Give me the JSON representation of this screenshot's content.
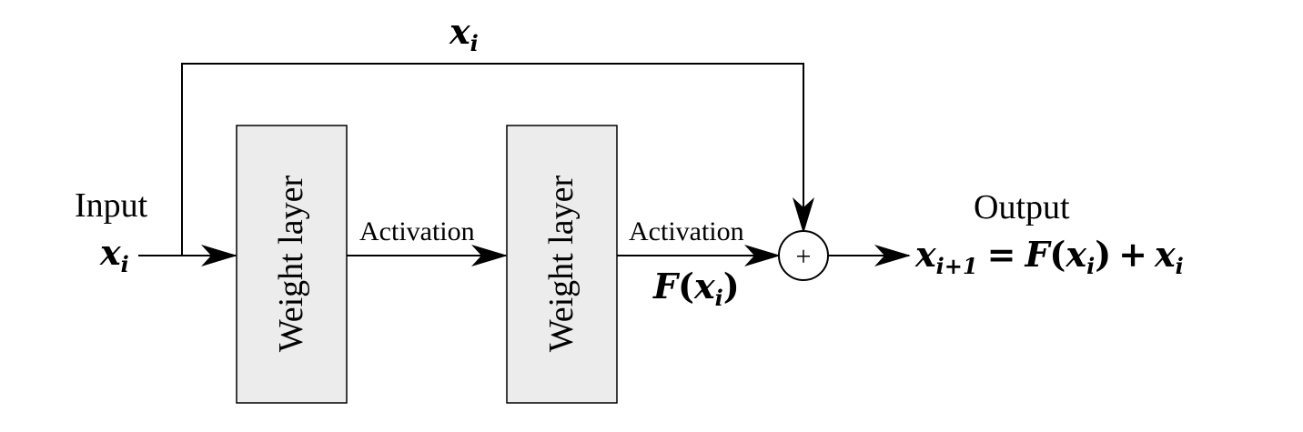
{
  "input": {
    "title": "Input",
    "var": "x",
    "sub": "i"
  },
  "skip": {
    "var": "x",
    "sub": "i"
  },
  "blocks": [
    {
      "label": "Weight layer"
    },
    {
      "label": "Weight layer"
    }
  ],
  "activations": [
    {
      "label": "Activation"
    },
    {
      "label": "Activation"
    }
  ],
  "residual": {
    "fn": "F",
    "lparen": "(",
    "var": "x",
    "sub": "i",
    "rparen": ")"
  },
  "sum_node": {
    "symbol": "+"
  },
  "output": {
    "title": "Output",
    "lhs_var": "x",
    "lhs_sub": "i+1",
    "eq": "=",
    "fn": "F",
    "lparen": "(",
    "arg_var": "x",
    "arg_sub": "i",
    "rparen": ")",
    "plus": "+",
    "add_var": "x",
    "add_sub": "i"
  },
  "colors": {
    "block_fill": "#ececec",
    "stroke": "#000000",
    "background": "#ffffff"
  }
}
